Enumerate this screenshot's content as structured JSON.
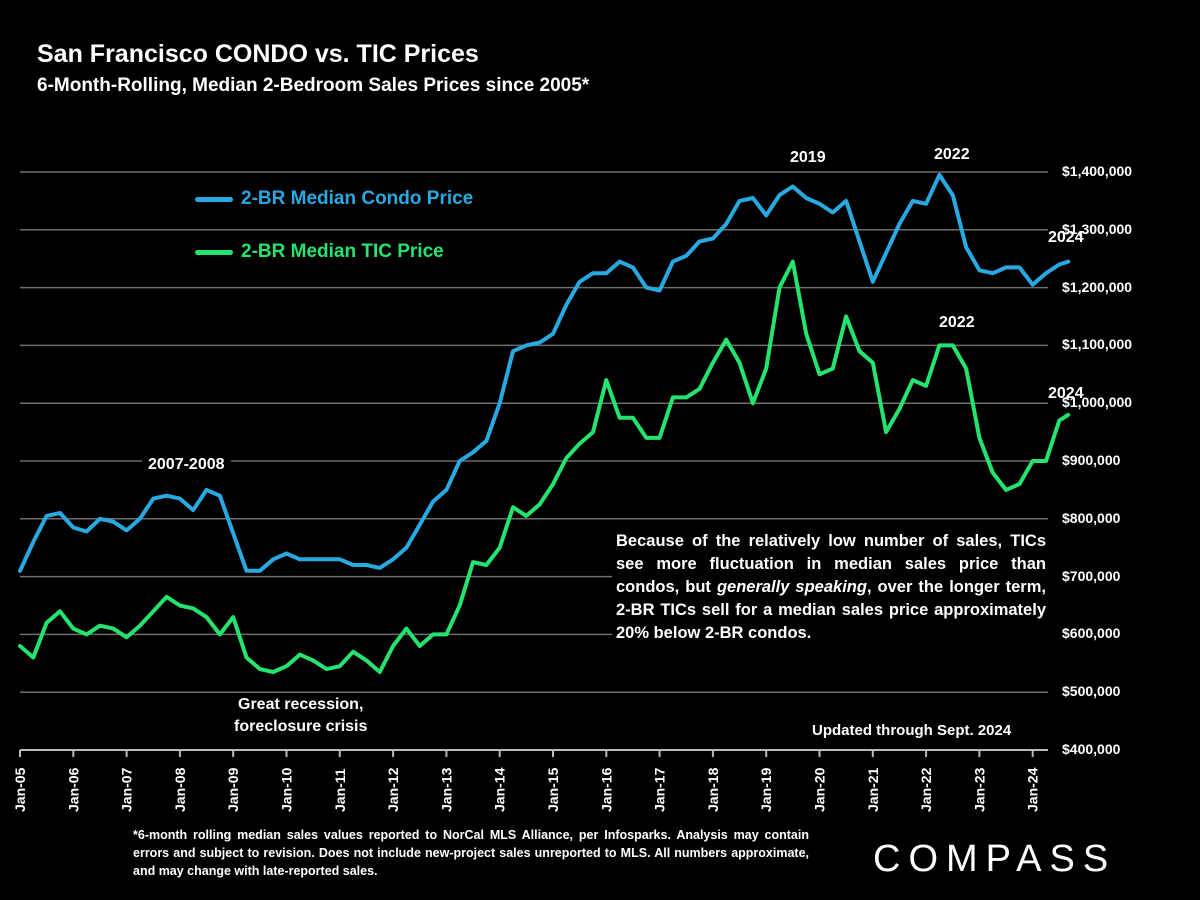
{
  "chart_data": {
    "type": "line",
    "title": "San Francisco CONDO vs. TIC Prices",
    "subtitle": "6-Month-Rolling, Median 2-Bedroom Sales Prices since 2005*",
    "ylim": [
      400000,
      1400000
    ],
    "y_ticks": [
      "$400,000",
      "$500,000",
      "$600,000",
      "$700,000",
      "$800,000",
      "$900,000",
      "$1,000,000",
      "$1,100,000",
      "$1,200,000",
      "$1,300,000",
      "$1,400,000"
    ],
    "y_axis_side": "right",
    "x_ticks": [
      "Jan-05",
      "Jan-06",
      "Jan-07",
      "Jan-08",
      "Jan-09",
      "Jan-10",
      "Jan-11",
      "Jan-12",
      "Jan-13",
      "Jan-14",
      "Jan-15",
      "Jan-16",
      "Jan-17",
      "Jan-18",
      "Jan-19",
      "Jan-20",
      "Jan-21",
      "Jan-22",
      "Jan-23",
      "Jan-24"
    ],
    "grid": true,
    "legend_placement": "top-left",
    "x": [
      "2005-01",
      "2005-04",
      "2005-07",
      "2005-10",
      "2006-01",
      "2006-04",
      "2006-07",
      "2006-10",
      "2007-01",
      "2007-04",
      "2007-07",
      "2007-10",
      "2008-01",
      "2008-04",
      "2008-07",
      "2008-10",
      "2009-01",
      "2009-04",
      "2009-07",
      "2009-10",
      "2010-01",
      "2010-04",
      "2010-07",
      "2010-10",
      "2011-01",
      "2011-04",
      "2011-07",
      "2011-10",
      "2012-01",
      "2012-04",
      "2012-07",
      "2012-10",
      "2013-01",
      "2013-04",
      "2013-07",
      "2013-10",
      "2014-01",
      "2014-04",
      "2014-07",
      "2014-10",
      "2015-01",
      "2015-04",
      "2015-07",
      "2015-10",
      "2016-01",
      "2016-04",
      "2016-07",
      "2016-10",
      "2017-01",
      "2017-04",
      "2017-07",
      "2017-10",
      "2018-01",
      "2018-04",
      "2018-07",
      "2018-10",
      "2019-01",
      "2019-04",
      "2019-07",
      "2019-10",
      "2020-01",
      "2020-04",
      "2020-07",
      "2020-10",
      "2021-01",
      "2021-04",
      "2021-07",
      "2021-10",
      "2022-01",
      "2022-04",
      "2022-07",
      "2022-10",
      "2023-01",
      "2023-04",
      "2023-07",
      "2023-10",
      "2024-01",
      "2024-04",
      "2024-07",
      "2024-09"
    ],
    "series": [
      {
        "name": "2-BR Median Condo Price",
        "color": "#29a9e1",
        "values": [
          710000,
          760000,
          805000,
          810000,
          785000,
          778000,
          800000,
          795000,
          780000,
          800000,
          835000,
          840000,
          835000,
          815000,
          850000,
          840000,
          775000,
          710000,
          710000,
          730000,
          740000,
          730000,
          730000,
          730000,
          730000,
          720000,
          720000,
          715000,
          730000,
          750000,
          790000,
          830000,
          850000,
          900000,
          915000,
          935000,
          1000000,
          1090000,
          1100000,
          1105000,
          1120000,
          1170000,
          1210000,
          1225000,
          1225000,
          1245000,
          1235000,
          1200000,
          1195000,
          1245000,
          1255000,
          1280000,
          1285000,
          1310000,
          1350000,
          1355000,
          1325000,
          1360000,
          1375000,
          1355000,
          1345000,
          1330000,
          1350000,
          1280000,
          1210000,
          1260000,
          1310000,
          1350000,
          1345000,
          1395000,
          1360000,
          1270000,
          1230000,
          1225000,
          1235000,
          1235000,
          1205000,
          1225000,
          1240000,
          1245000
        ]
      },
      {
        "name": "2-BR Median TIC Price",
        "color": "#24e36f",
        "values": [
          580000,
          560000,
          620000,
          640000,
          610000,
          600000,
          615000,
          610000,
          595000,
          615000,
          640000,
          665000,
          650000,
          645000,
          630000,
          600000,
          630000,
          560000,
          540000,
          535000,
          545000,
          565000,
          555000,
          540000,
          545000,
          570000,
          555000,
          535000,
          580000,
          610000,
          580000,
          600000,
          600000,
          650000,
          725000,
          720000,
          750000,
          820000,
          805000,
          825000,
          860000,
          905000,
          930000,
          950000,
          1040000,
          975000,
          975000,
          940000,
          940000,
          1010000,
          1010000,
          1025000,
          1070000,
          1110000,
          1070000,
          1000000,
          1060000,
          1200000,
          1245000,
          1120000,
          1050000,
          1060000,
          1150000,
          1090000,
          1070000,
          950000,
          990000,
          1040000,
          1030000,
          1100000,
          1100000,
          1060000,
          940000,
          880000,
          850000,
          860000,
          900000,
          900000,
          970000,
          980000
        ]
      }
    ],
    "annotations": {
      "crisis_peak": "2007-2008",
      "recession": [
        "Great recession,",
        "foreclosure crisis"
      ],
      "condo_2019": "2019",
      "condo_2022": "2022",
      "condo_2024": "2024",
      "tic_2022": "2022",
      "tic_2024": "2024",
      "note_parts": [
        "Because of the relatively low number of sales, TICs see more fluctuation in median sales price than condos, but ",
        "generally speaking",
        ", over the longer term, 2-BR TICs sell for a median sales price approximately 20% below 2-BR condos."
      ],
      "updated": "Updated through Sept. 2024"
    }
  },
  "footnote": "*6-month rolling median sales values reported to NorCal MLS Alliance, per Infosparks. Analysis may contain errors and subject to revision. Does not include new-project sales unreported to MLS. All numbers approximate, and may change with late-reported sales.",
  "logo": "COMPASS"
}
